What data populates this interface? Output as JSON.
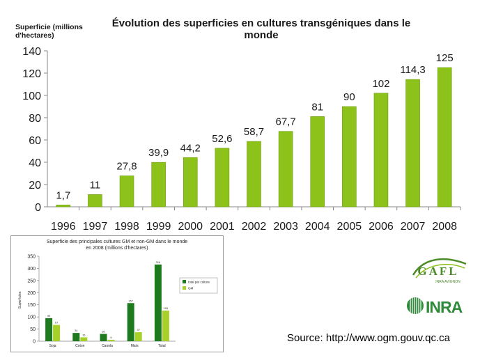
{
  "chart_data": [
    {
      "type": "bar",
      "title": "Évolution des superficies en cultures transgéniques dans le monde",
      "title_lines": [
        "Évolution des superficies en cultures transgéniques dans le",
        "monde"
      ],
      "ylabel": "Superficie (millions d'hectares)",
      "ylabel_lines": [
        "Superficie (millions",
        "d'hectares)"
      ],
      "categories": [
        "1996",
        "1997",
        "1998",
        "1999",
        "2000",
        "2001",
        "2002",
        "2003",
        "2004",
        "2005",
        "2006",
        "2007",
        "2008"
      ],
      "values": [
        1.7,
        11,
        27.8,
        39.9,
        44.2,
        52.6,
        58.7,
        67.7,
        81,
        90,
        102,
        114.3,
        125
      ],
      "value_labels": [
        "1,7",
        "11",
        "27,8",
        "39,9",
        "44,2",
        "52,6",
        "58,7",
        "67,7",
        "81",
        "90",
        "102",
        "114,3",
        "125"
      ],
      "ylim": [
        0,
        140
      ],
      "yticks": [
        0,
        20,
        40,
        60,
        80,
        100,
        120,
        140
      ],
      "grid": false,
      "color": "#8cc21a"
    },
    {
      "type": "bar",
      "title": "Superficie des principales cultures GM et non-GM dans le monde en 2008 (millions d'hectares)",
      "title_lines": [
        "Superficie des principales cultures GM et non-GM dans le monde",
        "en 2008 (millions d'hectares)"
      ],
      "ylabel": "Superficies",
      "categories": [
        "Soja",
        "Coton",
        "Canola",
        "Maïs",
        "Total"
      ],
      "series": [
        {
          "name": "total par culture",
          "values": [
            95,
            34,
            30,
            157,
            316
          ],
          "color": "#1e7a1e"
        },
        {
          "name": "GM",
          "values": [
            67,
            16,
            6,
            37,
            126
          ],
          "color": "#a8d02a"
        }
      ],
      "ylim": [
        0,
        350
      ],
      "yticks": [
        0,
        50,
        100,
        150,
        200,
        250,
        300,
        350
      ],
      "legend": "right"
    }
  ],
  "logos": {
    "gafl": {
      "text": "GAFL",
      "subtext": "INRA AVIGNON",
      "color": "#4c8a2a"
    },
    "inra": {
      "text": "INRA",
      "color": "#2f8a3a"
    }
  },
  "source_text": "Source: http://www.ogm.gouv.qc.ca"
}
